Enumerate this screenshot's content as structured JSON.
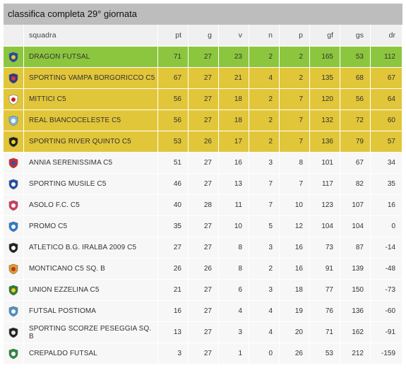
{
  "title": "classifica completa 29° giornata",
  "columns": {
    "squadra": "squadra",
    "pt": "pt",
    "g": "g",
    "v": "v",
    "n": "n",
    "p": "p",
    "gf": "gf",
    "gs": "gs",
    "dr": "dr"
  },
  "rows": [
    {
      "squadra": "DRAGON FUTSAL",
      "pt": "71",
      "g": "27",
      "v": "23",
      "n": "2",
      "p": "2",
      "gf": "165",
      "gs": "53",
      "dr": "112",
      "logo": "dragon-futsal-logo",
      "status": "leader",
      "c1": "#1c4fa0",
      "c2": "#f2c230"
    },
    {
      "squadra": "SPORTING VAMPA BORGORICCO C5",
      "pt": "67",
      "g": "27",
      "v": "21",
      "n": "4",
      "p": "2",
      "gf": "135",
      "gs": "68",
      "dr": "67",
      "logo": "sporting-vampa-logo",
      "status": "promo",
      "c1": "#2a3a8c",
      "c2": "#d83a3a"
    },
    {
      "squadra": "MITTICI C5",
      "pt": "56",
      "g": "27",
      "v": "18",
      "n": "2",
      "p": "7",
      "gf": "120",
      "gs": "56",
      "dr": "64",
      "logo": "mittici-logo",
      "status": "promo",
      "c1": "#ffffff",
      "c2": "#c82020"
    },
    {
      "squadra": "REAL BIANCOCELESTE C5",
      "pt": "56",
      "g": "27",
      "v": "18",
      "n": "2",
      "p": "7",
      "gf": "132",
      "gs": "72",
      "dr": "60",
      "logo": "real-biancoceleste-logo",
      "status": "promo",
      "c1": "#7fb8e0",
      "c2": "#ffffff"
    },
    {
      "squadra": "SPORTING RIVER QUINTO C5",
      "pt": "53",
      "g": "26",
      "v": "17",
      "n": "2",
      "p": "7",
      "gf": "136",
      "gs": "79",
      "dr": "57",
      "logo": "sporting-river-logo",
      "status": "promo",
      "c1": "#1e1e1e",
      "c2": "#f0d020"
    },
    {
      "squadra": "ANNIA SERENISSIMA C5",
      "pt": "51",
      "g": "27",
      "v": "16",
      "n": "3",
      "p": "8",
      "gf": "101",
      "gs": "67",
      "dr": "34",
      "logo": "annia-serenissima-logo",
      "status": "",
      "c1": "#d62828",
      "c2": "#2a55b5"
    },
    {
      "squadra": "SPORTING MUSILE C5",
      "pt": "46",
      "g": "27",
      "v": "13",
      "n": "7",
      "p": "7",
      "gf": "117",
      "gs": "82",
      "dr": "35",
      "logo": "sporting-musile-logo",
      "status": "",
      "c1": "#1f4fa8",
      "c2": "#ffffff"
    },
    {
      "squadra": "ASOLO F.C. C5",
      "pt": "40",
      "g": "28",
      "v": "11",
      "n": "7",
      "p": "10",
      "gf": "123",
      "gs": "107",
      "dr": "16",
      "logo": "asolo-fc-logo",
      "status": "",
      "c1": "#d63a5a",
      "c2": "#ffffff"
    },
    {
      "squadra": "PROMO C5",
      "pt": "35",
      "g": "27",
      "v": "10",
      "n": "5",
      "p": "12",
      "gf": "104",
      "gs": "104",
      "dr": "0",
      "logo": "promo-c5-logo",
      "status": "",
      "c1": "#2a7ad6",
      "c2": "#ffffff"
    },
    {
      "squadra": "ATLETICO B.G. IRALBA 2009 C5",
      "pt": "27",
      "g": "27",
      "v": "8",
      "n": "3",
      "p": "16",
      "gf": "73",
      "gs": "87",
      "dr": "-14",
      "logo": "atletico-iralba-logo",
      "status": "",
      "c1": "#222222",
      "c2": "#ffffff"
    },
    {
      "squadra": "MONTICANO C5 Sq. B",
      "pt": "26",
      "g": "26",
      "v": "8",
      "n": "2",
      "p": "16",
      "gf": "91",
      "gs": "139",
      "dr": "-48",
      "logo": "monticano-logo",
      "status": "",
      "c1": "#e0a020",
      "c2": "#c03030"
    },
    {
      "squadra": "UNION EZZELINA C5",
      "pt": "21",
      "g": "27",
      "v": "6",
      "n": "3",
      "p": "18",
      "gf": "77",
      "gs": "150",
      "dr": "-73",
      "logo": "union-ezzelina-logo",
      "status": "",
      "c1": "#2e7d32",
      "c2": "#f2d024"
    },
    {
      "squadra": "FUTSAL POSTIOMA",
      "pt": "16",
      "g": "27",
      "v": "4",
      "n": "4",
      "p": "19",
      "gf": "76",
      "gs": "136",
      "dr": "-60",
      "logo": "futsal-postioma-logo",
      "status": "",
      "c1": "#4a90c8",
      "c2": "#ffffff"
    },
    {
      "squadra": "SPORTING SCORZE PESEGGIA Sq. B",
      "pt": "13",
      "g": "27",
      "v": "3",
      "n": "4",
      "p": "20",
      "gf": "71",
      "gs": "162",
      "dr": "-91",
      "logo": "sporting-scorze-logo",
      "status": "",
      "c1": "#222222",
      "c2": "#e8e8e8"
    },
    {
      "squadra": "CREPALDO FUTSAL",
      "pt": "3",
      "g": "27",
      "v": "1",
      "n": "0",
      "p": "26",
      "gf": "53",
      "gs": "212",
      "dr": "-159",
      "logo": "crepaldo-futsal-logo",
      "status": "",
      "c1": "#2e8b3e",
      "c2": "#ffffff"
    }
  ],
  "colors": {
    "leader": "#8cc63f",
    "promo": "#e2c63a",
    "row": "#f7f7f7",
    "header": "#f0f0f0",
    "titlebar": "#bdbdbd"
  }
}
